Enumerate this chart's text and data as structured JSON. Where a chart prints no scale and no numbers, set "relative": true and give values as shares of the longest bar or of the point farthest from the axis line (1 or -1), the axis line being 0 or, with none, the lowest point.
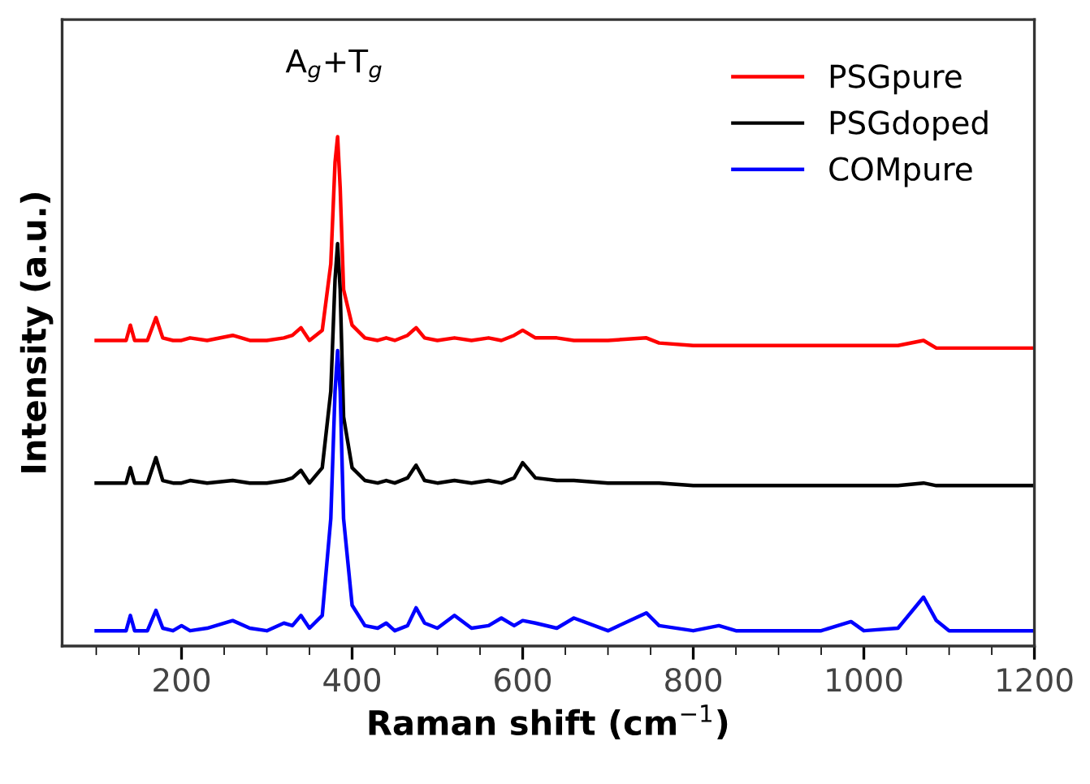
{
  "chart_data": {
    "type": "line",
    "relative": true,
    "xlabel": "Raman shift (cm$^{−1}$)",
    "ylabel": "Intensity (a.u.)",
    "annotations": [
      "A$_{g}$+T$_{g}$"
    ],
    "xlim": [
      60,
      1200
    ],
    "xticks": [
      200,
      400,
      600,
      800,
      1000,
      1200
    ],
    "tick_labels": "x",
    "grid": false,
    "legend": "top right",
    "marker": "none",
    "line_style": "solid",
    "x": [
      100,
      120,
      135,
      140,
      145,
      160,
      170,
      178,
      190,
      200,
      210,
      230,
      260,
      280,
      300,
      320,
      330,
      340,
      350,
      365,
      375,
      380,
      383,
      386,
      390,
      400,
      415,
      430,
      440,
      450,
      465,
      475,
      485,
      500,
      520,
      540,
      560,
      575,
      590,
      600,
      615,
      640,
      660,
      700,
      745,
      760,
      800,
      830,
      850,
      900,
      950,
      985,
      1000,
      1040,
      1070,
      1085,
      1100,
      1150,
      1200
    ],
    "series": [
      {
        "name": "PSGpure",
        "color": "#ff0000",
        "values": [
          0.6,
          0.6,
          0.6,
          0.63,
          0.6,
          0.6,
          0.645,
          0.605,
          0.6,
          0.6,
          0.605,
          0.6,
          0.61,
          0.6,
          0.6,
          0.605,
          0.61,
          0.625,
          0.6,
          0.62,
          0.75,
          0.95,
          1.0,
          0.9,
          0.7,
          0.63,
          0.605,
          0.6,
          0.605,
          0.6,
          0.61,
          0.625,
          0.605,
          0.6,
          0.605,
          0.6,
          0.605,
          0.6,
          0.61,
          0.62,
          0.605,
          0.605,
          0.6,
          0.6,
          0.605,
          0.595,
          0.59,
          0.59,
          0.59,
          0.59,
          0.59,
          0.59,
          0.59,
          0.59,
          0.6,
          0.585,
          0.585,
          0.585,
          0.585
        ]
      },
      {
        "name": "PSGdoped",
        "color": "#000000",
        "values": [
          0.32,
          0.32,
          0.32,
          0.35,
          0.32,
          0.32,
          0.37,
          0.325,
          0.32,
          0.32,
          0.325,
          0.32,
          0.325,
          0.32,
          0.32,
          0.325,
          0.33,
          0.345,
          0.32,
          0.35,
          0.5,
          0.72,
          0.79,
          0.7,
          0.45,
          0.35,
          0.325,
          0.32,
          0.325,
          0.32,
          0.33,
          0.355,
          0.325,
          0.32,
          0.325,
          0.32,
          0.325,
          0.32,
          0.33,
          0.36,
          0.33,
          0.325,
          0.325,
          0.32,
          0.32,
          0.32,
          0.315,
          0.315,
          0.315,
          0.315,
          0.315,
          0.315,
          0.315,
          0.315,
          0.32,
          0.315,
          0.315,
          0.315,
          0.315
        ]
      },
      {
        "name": "COMpure",
        "color": "#0000ff",
        "values": [
          0.03,
          0.03,
          0.03,
          0.06,
          0.03,
          0.03,
          0.07,
          0.035,
          0.03,
          0.04,
          0.03,
          0.035,
          0.05,
          0.035,
          0.03,
          0.045,
          0.04,
          0.06,
          0.035,
          0.06,
          0.25,
          0.5,
          0.58,
          0.5,
          0.25,
          0.08,
          0.04,
          0.035,
          0.045,
          0.03,
          0.04,
          0.075,
          0.045,
          0.035,
          0.06,
          0.035,
          0.04,
          0.055,
          0.04,
          0.05,
          0.045,
          0.035,
          0.055,
          0.03,
          0.065,
          0.04,
          0.03,
          0.04,
          0.03,
          0.03,
          0.03,
          0.048,
          0.03,
          0.035,
          0.096,
          0.05,
          0.03,
          0.03,
          0.03
        ]
      }
    ]
  }
}
